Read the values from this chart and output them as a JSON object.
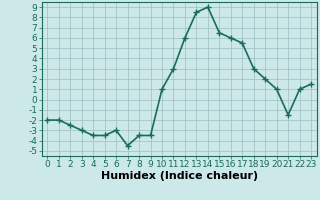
{
  "x": [
    0,
    1,
    2,
    3,
    4,
    5,
    6,
    7,
    8,
    9,
    10,
    11,
    12,
    13,
    14,
    15,
    16,
    17,
    18,
    19,
    20,
    21,
    22,
    23
  ],
  "y": [
    -2,
    -2,
    -2.5,
    -3,
    -3.5,
    -3.5,
    -3,
    -4.5,
    -3.5,
    -3.5,
    1,
    3,
    6,
    8.5,
    9,
    6.5,
    6,
    5.5,
    3,
    2,
    1,
    -1.5,
    1,
    1.5
  ],
  "line_color": "#1a6b5a",
  "marker": "+",
  "marker_size": 4,
  "background_color": "#cce8e8",
  "grid_color": "#9bbfbf",
  "xlabel": "Humidex (Indice chaleur)",
  "xlabel_fontsize": 8,
  "ylim": [
    -5.5,
    9.5
  ],
  "xlim": [
    -0.5,
    23.5
  ],
  "yticks": [
    -5,
    -4,
    -3,
    -2,
    -1,
    0,
    1,
    2,
    3,
    4,
    5,
    6,
    7,
    8,
    9
  ],
  "xticks": [
    0,
    1,
    2,
    3,
    4,
    5,
    6,
    7,
    8,
    9,
    10,
    11,
    12,
    13,
    14,
    15,
    16,
    17,
    18,
    19,
    20,
    21,
    22,
    23
  ],
  "tick_fontsize": 6.5,
  "spine_color": "#1a6b5a",
  "line_width": 1.2
}
